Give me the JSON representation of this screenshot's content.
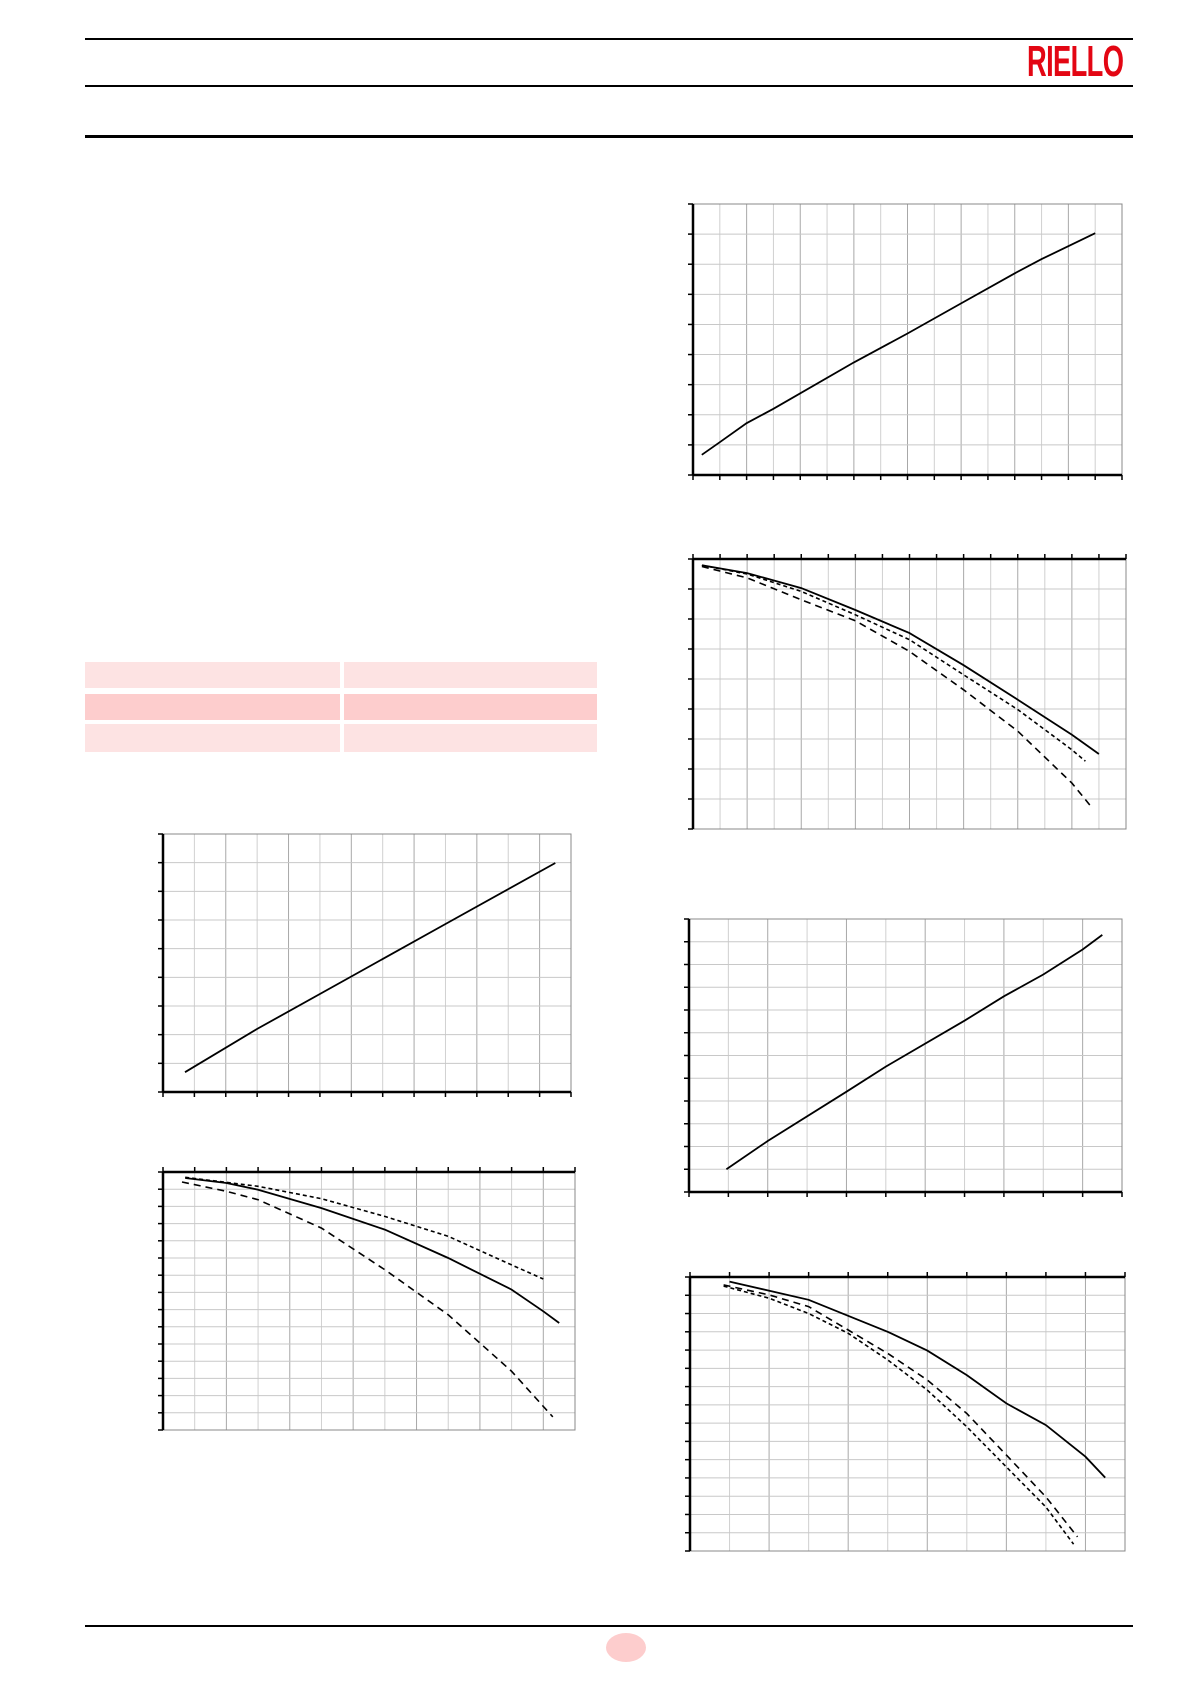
{
  "header": {
    "logo_text": "RIELLO",
    "brand_color": "#e30613"
  },
  "table": {
    "rows": [
      {
        "shade": "#fde3e3",
        "cells": [
          "",
          ""
        ]
      },
      {
        "shade": "#fdcdcd",
        "cells": [
          "",
          ""
        ]
      },
      {
        "shade": "#fde3e3",
        "cells": [
          "",
          ""
        ]
      }
    ]
  },
  "footer": {
    "page_badge_color": "#fdcdcd"
  },
  "chart_data": [
    {
      "type": "line",
      "grid": true,
      "xlim": [
        0,
        16
      ],
      "ylim": [
        0,
        9
      ],
      "series": [
        {
          "style": "solid",
          "x": [
            0.33,
            1,
            2,
            3,
            6,
            8,
            10,
            12,
            13,
            15
          ],
          "y": [
            0.67,
            1.09,
            1.72,
            2.2,
            3.74,
            4.7,
            5.7,
            6.7,
            7.17,
            8.03
          ]
        }
      ]
    },
    {
      "type": "line",
      "grid": true,
      "xlim": [
        0,
        16
      ],
      "ylim": [
        0,
        9
      ],
      "series": [
        {
          "style": "solid",
          "x": [
            0.33,
            2,
            4,
            6,
            8,
            10,
            12,
            14,
            15
          ],
          "y": [
            8.79,
            8.53,
            8.03,
            7.3,
            6.53,
            5.46,
            4.31,
            3.14,
            2.5
          ]
        },
        {
          "style": "dotted",
          "x": [
            0.33,
            2,
            4,
            6,
            8,
            10,
            12,
            14,
            14.5
          ],
          "y": [
            8.79,
            8.5,
            7.92,
            7.14,
            6.31,
            5.14,
            3.98,
            2.64,
            2.26
          ]
        },
        {
          "style": "dashed",
          "x": [
            0.33,
            2,
            4,
            6,
            8,
            10,
            12,
            14,
            14.7
          ],
          "y": [
            8.75,
            8.37,
            7.64,
            6.94,
            5.92,
            4.64,
            3.26,
            1.53,
            0.76
          ]
        }
      ]
    },
    {
      "type": "line",
      "grid": true,
      "xlim": [
        0,
        13
      ],
      "ylim": [
        0,
        9
      ],
      "series": [
        {
          "style": "solid",
          "x": [
            0.7,
            3,
            6,
            9,
            12.5
          ],
          "y": [
            0.69,
            2.2,
            4.03,
            5.86,
            7.99
          ]
        }
      ]
    },
    {
      "type": "line",
      "grid": true,
      "xlim": [
        0,
        13
      ],
      "ylim": [
        0,
        15
      ],
      "series": [
        {
          "style": "solid",
          "x": [
            0.7,
            2,
            3,
            5,
            7,
            9,
            11,
            12,
            12.5
          ],
          "y": [
            14.65,
            14.36,
            13.97,
            12.9,
            11.65,
            10,
            8.16,
            6.9,
            6.22
          ]
        },
        {
          "style": "dotted",
          "x": [
            0.7,
            3,
            5,
            7,
            9,
            11,
            12
          ],
          "y": [
            14.69,
            14.17,
            13.45,
            12.42,
            11.26,
            9.6,
            8.78
          ]
        },
        {
          "style": "dashed",
          "x": [
            0.6,
            2,
            3,
            5,
            7,
            9,
            10,
            11,
            12.3
          ],
          "y": [
            14.42,
            13.88,
            13.39,
            11.74,
            9.32,
            6.7,
            5.06,
            3.41,
            0.76
          ]
        }
      ]
    },
    {
      "type": "line",
      "grid": true,
      "xlim": [
        0,
        11
      ],
      "ylim": [
        0,
        12
      ],
      "series": [
        {
          "style": "solid",
          "x": [
            0.95,
            2,
            4,
            5,
            7,
            8,
            9,
            10,
            10.5
          ],
          "y": [
            1.0,
            2.24,
            4.41,
            5.51,
            7.53,
            8.6,
            9.56,
            10.66,
            11.3
          ]
        }
      ]
    },
    {
      "type": "line",
      "grid": true,
      "xlim": [
        0,
        11
      ],
      "ylim": [
        0,
        15
      ],
      "series": [
        {
          "style": "solid",
          "x": [
            1,
            3,
            5,
            6,
            7,
            8,
            9,
            10,
            10.5
          ],
          "y": [
            14.75,
            13.75,
            12.0,
            10.97,
            9.63,
            8.08,
            6.89,
            5.16,
            4.02
          ]
        },
        {
          "style": "dashed",
          "x": [
            0.85,
            2,
            3,
            4,
            5,
            6,
            7,
            8,
            9,
            9.8
          ],
          "y": [
            14.57,
            14.02,
            13.38,
            12.1,
            10.82,
            9.36,
            7.53,
            5.25,
            2.96,
            0.77
          ]
        },
        {
          "style": "dotted",
          "x": [
            0.85,
            2,
            3,
            4,
            5,
            6,
            7,
            8,
            9,
            9.7
          ],
          "y": [
            14.5,
            13.84,
            13.0,
            11.92,
            10.46,
            8.81,
            6.8,
            4.6,
            2.41,
            0.37
          ]
        }
      ]
    }
  ]
}
